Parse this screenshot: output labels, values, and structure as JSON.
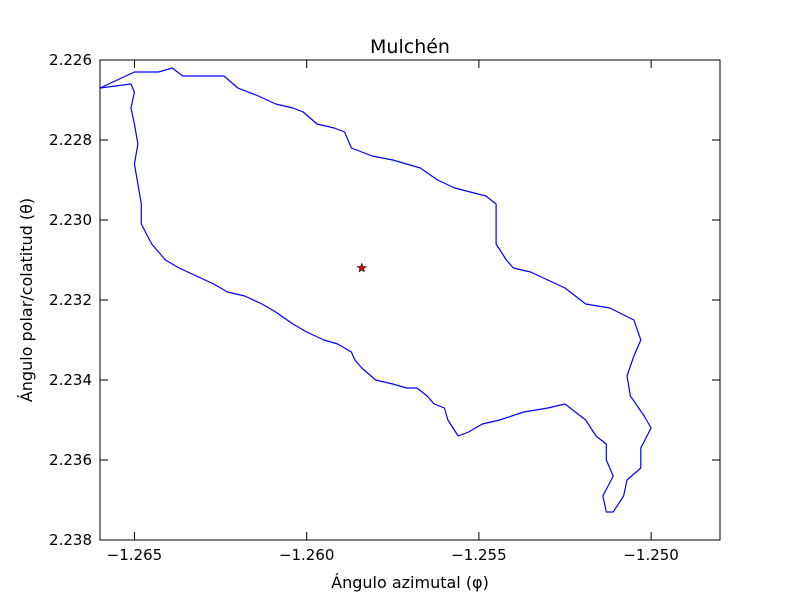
{
  "chart_data": {
    "type": "line",
    "title": "Mulchén",
    "xlabel": "Ángulo azimutal (φ)",
    "ylabel": "Ángulo polar/colatitud (θ)",
    "xlim": [
      -1.266,
      -1.248
    ],
    "ylim": [
      2.226,
      2.238
    ],
    "y_inverted": true,
    "grid": false,
    "xticks": [
      {
        "value": -1.265,
        "label": "−1.265"
      },
      {
        "value": -1.26,
        "label": "−1.260"
      },
      {
        "value": -1.255,
        "label": "−1.255"
      },
      {
        "value": -1.25,
        "label": "−1.250"
      }
    ],
    "yticks": [
      {
        "value": 2.226,
        "label": "2.226"
      },
      {
        "value": 2.228,
        "label": "2.228"
      },
      {
        "value": 2.23,
        "label": "2.230"
      },
      {
        "value": 2.232,
        "label": "2.232"
      },
      {
        "value": 2.234,
        "label": "2.234"
      },
      {
        "value": 2.236,
        "label": "2.236"
      },
      {
        "value": 2.238,
        "label": "2.238"
      }
    ],
    "series": [
      {
        "kind": "boundary",
        "color": "#0000ff",
        "points": [
          [
            -1.266,
            2.2267
          ],
          [
            -1.265,
            2.2263
          ],
          [
            -1.2643,
            2.2263
          ],
          [
            -1.2639,
            2.2262
          ],
          [
            -1.2636,
            2.2264
          ],
          [
            -1.2624,
            2.2264
          ],
          [
            -1.262,
            2.2267
          ],
          [
            -1.2614,
            2.2269
          ],
          [
            -1.2609,
            2.2271
          ],
          [
            -1.2604,
            2.2272
          ],
          [
            -1.2601,
            2.2273
          ],
          [
            -1.2597,
            2.2276
          ],
          [
            -1.2592,
            2.2277
          ],
          [
            -1.2589,
            2.2278
          ],
          [
            -1.2587,
            2.2282
          ],
          [
            -1.2581,
            2.2284
          ],
          [
            -1.2575,
            2.2285
          ],
          [
            -1.2571,
            2.2286
          ],
          [
            -1.2567,
            2.2287
          ],
          [
            -1.2562,
            2.229
          ],
          [
            -1.2557,
            2.2292
          ],
          [
            -1.2548,
            2.2294
          ],
          [
            -1.2545,
            2.2296
          ],
          [
            -1.2545,
            2.2306
          ],
          [
            -1.2542,
            2.231
          ],
          [
            -1.254,
            2.2312
          ],
          [
            -1.2535,
            2.2313
          ],
          [
            -1.253,
            2.2315
          ],
          [
            -1.2525,
            2.2317
          ],
          [
            -1.2519,
            2.2321
          ],
          [
            -1.2512,
            2.2322
          ],
          [
            -1.2505,
            2.2325
          ],
          [
            -1.2503,
            2.233
          ],
          [
            -1.2505,
            2.2334
          ],
          [
            -1.2507,
            2.2339
          ],
          [
            -1.2506,
            2.2344
          ],
          [
            -1.2502,
            2.2349
          ],
          [
            -1.25,
            2.2352
          ],
          [
            -1.2503,
            2.2357
          ],
          [
            -1.2503,
            2.2362
          ],
          [
            -1.2507,
            2.2365
          ],
          [
            -1.2508,
            2.2369
          ],
          [
            -1.2511,
            2.2373
          ],
          [
            -1.2513,
            2.2373
          ],
          [
            -1.2514,
            2.2369
          ],
          [
            -1.2511,
            2.2364
          ],
          [
            -1.2513,
            2.236
          ],
          [
            -1.2513,
            2.2356
          ],
          [
            -1.2516,
            2.2354
          ],
          [
            -1.2519,
            2.235
          ],
          [
            -1.2525,
            2.2346
          ],
          [
            -1.253,
            2.2347
          ],
          [
            -1.2537,
            2.2348
          ],
          [
            -1.2544,
            2.235
          ],
          [
            -1.2549,
            2.2351
          ],
          [
            -1.2553,
            2.2353
          ],
          [
            -1.2556,
            2.2354
          ],
          [
            -1.2559,
            2.235
          ],
          [
            -1.256,
            2.2347
          ],
          [
            -1.2563,
            2.2346
          ],
          [
            -1.2565,
            2.2344
          ],
          [
            -1.2568,
            2.2342
          ],
          [
            -1.2571,
            2.2342
          ],
          [
            -1.2575,
            2.2341
          ],
          [
            -1.258,
            2.234
          ],
          [
            -1.2584,
            2.2337
          ],
          [
            -1.2586,
            2.2335
          ],
          [
            -1.2587,
            2.2333
          ],
          [
            -1.2591,
            2.2331
          ],
          [
            -1.2595,
            2.233
          ],
          [
            -1.26,
            2.2328
          ],
          [
            -1.2604,
            2.2326
          ],
          [
            -1.2609,
            2.2323
          ],
          [
            -1.2613,
            2.2321
          ],
          [
            -1.2618,
            2.2319
          ],
          [
            -1.2623,
            2.2318
          ],
          [
            -1.2627,
            2.2316
          ],
          [
            -1.2632,
            2.2314
          ],
          [
            -1.2637,
            2.2312
          ],
          [
            -1.2641,
            2.231
          ],
          [
            -1.2645,
            2.2306
          ],
          [
            -1.2648,
            2.2301
          ],
          [
            -1.2648,
            2.2296
          ],
          [
            -1.2649,
            2.2291
          ],
          [
            -1.265,
            2.2286
          ],
          [
            -1.2649,
            2.2281
          ],
          [
            -1.265,
            2.2276
          ],
          [
            -1.2651,
            2.2272
          ],
          [
            -1.265,
            2.2268
          ],
          [
            -1.2651,
            2.2266
          ],
          [
            -1.266,
            2.2267
          ]
        ]
      }
    ],
    "marker": {
      "x": -1.2584,
      "y": 2.2312,
      "symbol": "star",
      "color": "#ff0000"
    }
  }
}
